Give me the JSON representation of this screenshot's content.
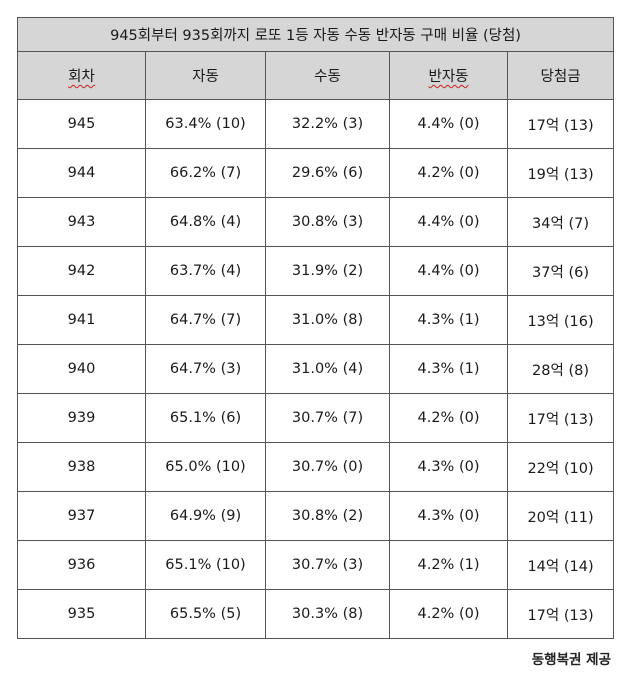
{
  "table": {
    "title": "945회부터 935회까지 로또 1등 자동 수동 반자동 구매 비율 (당첨)",
    "headers": [
      "회차",
      "자동",
      "수동",
      "반자동",
      "당첨금"
    ],
    "rows": [
      [
        "945",
        "63.4% (10)",
        "32.2% (3)",
        "4.4% (0)",
        "17억 (13)"
      ],
      [
        "944",
        "66.2% (7)",
        "29.6% (6)",
        "4.2% (0)",
        "19억 (13)"
      ],
      [
        "943",
        "64.8% (4)",
        "30.8% (3)",
        "4.4% (0)",
        "34억 (7)"
      ],
      [
        "942",
        "63.7% (4)",
        "31.9% (2)",
        "4.4% (0)",
        "37억 (6)"
      ],
      [
        "941",
        "64.7% (7)",
        "31.0% (8)",
        "4.3% (1)",
        "13억 (16)"
      ],
      [
        "940",
        "64.7% (3)",
        "31.0% (4)",
        "4.3% (1)",
        "28억 (8)"
      ],
      [
        "939",
        "65.1% (6)",
        "30.7% (7)",
        "4.2% (0)",
        "17억 (13)"
      ],
      [
        "938",
        "65.0% (10)",
        "30.7% (0)",
        "4.3% (0)",
        "22억 (10)"
      ],
      [
        "937",
        "64.9% (9)",
        "30.8% (2)",
        "4.3% (0)",
        "20억 (11)"
      ],
      [
        "936",
        "65.1% (10)",
        "30.7% (3)",
        "4.2% (1)",
        "14억 (14)"
      ],
      [
        "935",
        "65.5% (5)",
        "30.3% (8)",
        "4.2% (0)",
        "17억 (13)"
      ]
    ]
  },
  "source": "동행복권 제공",
  "colors": {
    "header_bg": "#d6d6d6",
    "border": "#555555",
    "spellcheck_underline": "#d02020"
  }
}
